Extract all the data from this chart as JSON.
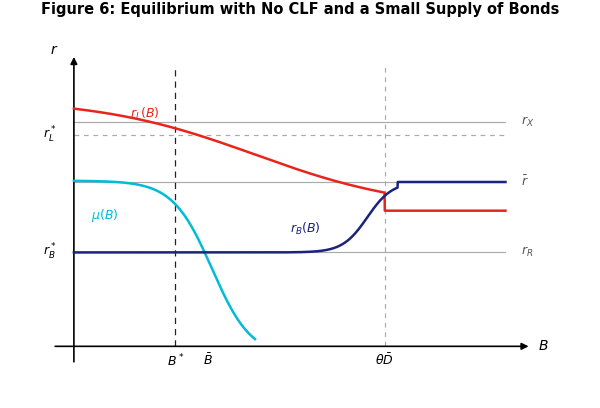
{
  "title": "Figure 6: Equilibrium with No CLF and a Small Supply of Bonds",
  "title_fontsize": 10.5,
  "figsize": [
    6.0,
    4.08
  ],
  "dpi": 100,
  "bg_color": "#ffffff",
  "r_X": 0.78,
  "r_bar": 0.55,
  "r_R": 0.28,
  "r_L_star": 0.73,
  "r_B_star": 0.28,
  "r_L_flat": 0.44,
  "r_L_start": 0.87,
  "B_star": 0.235,
  "B_bar": 0.31,
  "theta_D_bar": 0.72,
  "x_max": 1.0,
  "y_max": 1.0,
  "y_min": -0.08,
  "colors": {
    "red_curve": "#e8251a",
    "blue_curve": "#1a237e",
    "cyan_curve": "#00bcd4",
    "gray_line": "#aaaaaa",
    "dashed_gray": "#aaaaaa",
    "black_dashed": "#222222"
  },
  "label_fontsize": 9,
  "annotation_fontsize": 9
}
